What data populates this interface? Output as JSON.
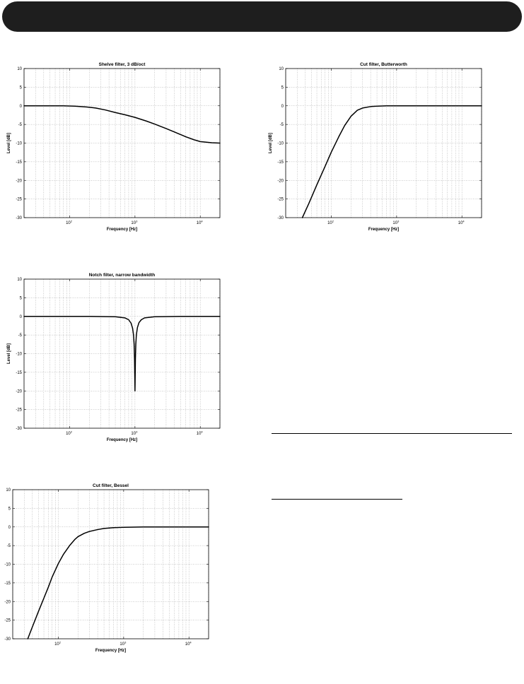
{
  "header": {
    "color": "#1e1e1e"
  },
  "chart_data": [
    {
      "type": "line",
      "title": "Shelve filter, 3 dB/oct",
      "xlabel": "Frequency [Hz]",
      "ylabel": "Level [dB]",
      "xscale": "log",
      "xlim": [
        20,
        20000
      ],
      "ylim": [
        -30,
        10
      ],
      "yticks": [
        10,
        5,
        0,
        -5,
        -10,
        -15,
        -20,
        -25,
        -30
      ],
      "xticks": [
        100,
        1000,
        10000
      ],
      "xtick_labels": [
        {
          "base": "10",
          "exp": "2"
        },
        {
          "base": "10",
          "exp": "3"
        },
        {
          "base": "10",
          "exp": "4"
        }
      ],
      "grid": true,
      "series": [
        {
          "x": [
            20,
            30,
            50,
            80,
            120,
            180,
            250,
            350,
            500,
            700,
            1000,
            1500,
            2000,
            3000,
            4000,
            6000,
            8000,
            10000,
            15000,
            20000
          ],
          "y": [
            0,
            0,
            0,
            0,
            -0.1,
            -0.3,
            -0.6,
            -1.1,
            -1.8,
            -2.4,
            -3.1,
            -4.1,
            -4.9,
            -6.1,
            -7.0,
            -8.3,
            -9.1,
            -9.6,
            -9.9,
            -10
          ]
        }
      ]
    },
    {
      "type": "line",
      "title": "Cut filter, Butterworth",
      "xlabel": "Frequency [Hz]",
      "ylabel": "Level [dB]",
      "xscale": "log",
      "xlim": [
        20,
        20000
      ],
      "ylim": [
        -30,
        10
      ],
      "yticks": [
        10,
        5,
        0,
        -5,
        -10,
        -15,
        -20,
        -25,
        -30
      ],
      "xticks": [
        100,
        1000,
        10000
      ],
      "xtick_labels": [
        {
          "base": "10",
          "exp": "2"
        },
        {
          "base": "10",
          "exp": "3"
        },
        {
          "base": "10",
          "exp": "4"
        }
      ],
      "grid": true,
      "series": [
        {
          "x": [
            36,
            45,
            60,
            80,
            100,
            130,
            160,
            200,
            250,
            300,
            400,
            500,
            700,
            1000,
            2000,
            5000,
            20000
          ],
          "y": [
            -30,
            -26.3,
            -21.2,
            -16.3,
            -12.4,
            -8.3,
            -5.3,
            -2.8,
            -1.2,
            -0.6,
            -0.2,
            -0.1,
            0,
            0,
            0,
            0,
            0
          ]
        }
      ]
    },
    {
      "type": "line",
      "title": "Notch filter, narrow bandwidth",
      "xlabel": "Frequency [Hz]",
      "ylabel": "Level [dB]",
      "xscale": "log",
      "xlim": [
        20,
        20000
      ],
      "ylim": [
        -30,
        10
      ],
      "yticks": [
        10,
        5,
        0,
        -5,
        -10,
        -15,
        -20,
        -25,
        -30
      ],
      "xticks": [
        100,
        1000,
        10000
      ],
      "xtick_labels": [
        {
          "base": "10",
          "exp": "2"
        },
        {
          "base": "10",
          "exp": "3"
        },
        {
          "base": "10",
          "exp": "4"
        }
      ],
      "grid": true,
      "series": [
        {
          "x": [
            20,
            200,
            500,
            700,
            800,
            870,
            920,
            950,
            970,
            985,
            1000,
            1015,
            1030,
            1050,
            1090,
            1150,
            1250,
            1400,
            2000,
            5000,
            20000
          ],
          "y": [
            0,
            0,
            -0.1,
            -0.4,
            -0.9,
            -1.8,
            -3.2,
            -5.0,
            -7.5,
            -11.5,
            -20,
            -11.5,
            -7.5,
            -5.0,
            -3.0,
            -1.7,
            -0.9,
            -0.4,
            -0.1,
            0,
            0
          ]
        }
      ]
    },
    {
      "type": "line",
      "title": "Cut filter, Bessel",
      "xlabel": "Frequency [Hz]",
      "ylabel": "Level [dB]",
      "xscale": "log",
      "xlim": [
        20,
        20000
      ],
      "ylim": [
        -30,
        10
      ],
      "yticks": [
        10,
        5,
        0,
        -5,
        -10,
        -15,
        -20,
        -25,
        -30
      ],
      "xticks": [
        100,
        1000,
        10000
      ],
      "xtick_labels": [
        {
          "base": "10",
          "exp": "2"
        },
        {
          "base": "10",
          "exp": "3"
        },
        {
          "base": "10",
          "exp": "4"
        }
      ],
      "grid": true,
      "series": [
        {
          "x": [
            34,
            40,
            50,
            60,
            70,
            80,
            100,
            120,
            150,
            180,
            200,
            250,
            300,
            400,
            500,
            700,
            1000,
            2000,
            5000,
            20000
          ],
          "y": [
            -30,
            -26.8,
            -22.5,
            -19.1,
            -16.2,
            -13.5,
            -9.8,
            -7.3,
            -4.9,
            -3.3,
            -2.6,
            -1.7,
            -1.2,
            -0.7,
            -0.4,
            -0.2,
            -0.1,
            0,
            0,
            0
          ]
        }
      ]
    }
  ]
}
